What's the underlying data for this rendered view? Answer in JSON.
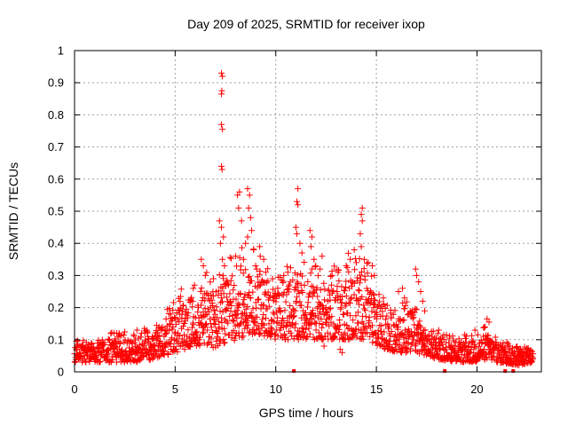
{
  "chart_data": {
    "type": "scatter",
    "title": "Day 209 of 2025, SRMTID for receiver ixop",
    "xlabel": "GPS time / hours",
    "ylabel": "SRMTID / TECUs",
    "xlim": [
      0,
      23.2
    ],
    "ylim": [
      0,
      1
    ],
    "x_ticks": [
      "0",
      "5",
      "10",
      "15",
      "20"
    ],
    "y_ticks": [
      "0",
      "0.1",
      "0.2",
      "0.3",
      "0.4",
      "0.5",
      "0.6",
      "0.7",
      "0.8",
      "0.9",
      "1"
    ],
    "grid": true,
    "marker": "+",
    "color": "#ff0000",
    "envelope": [
      {
        "x": 0.0,
        "low": 0.03,
        "high": 0.08
      },
      {
        "x": 1.0,
        "low": 0.03,
        "high": 0.09
      },
      {
        "x": 2.0,
        "low": 0.03,
        "high": 0.1
      },
      {
        "x": 3.0,
        "low": 0.03,
        "high": 0.1
      },
      {
        "x": 4.0,
        "low": 0.04,
        "high": 0.12
      },
      {
        "x": 4.5,
        "low": 0.05,
        "high": 0.15
      },
      {
        "x": 5.0,
        "low": 0.06,
        "high": 0.19
      },
      {
        "x": 5.5,
        "low": 0.07,
        "high": 0.22
      },
      {
        "x": 6.0,
        "low": 0.08,
        "high": 0.24
      },
      {
        "x": 6.5,
        "low": 0.08,
        "high": 0.26
      },
      {
        "x": 7.0,
        "low": 0.07,
        "high": 0.26
      },
      {
        "x": 7.5,
        "low": 0.08,
        "high": 0.28
      },
      {
        "x": 8.0,
        "low": 0.1,
        "high": 0.32
      },
      {
        "x": 8.5,
        "low": 0.11,
        "high": 0.34
      },
      {
        "x": 9.0,
        "low": 0.12,
        "high": 0.32
      },
      {
        "x": 9.5,
        "low": 0.11,
        "high": 0.28
      },
      {
        "x": 10.0,
        "low": 0.1,
        "high": 0.25
      },
      {
        "x": 10.5,
        "low": 0.1,
        "high": 0.27
      },
      {
        "x": 11.0,
        "low": 0.1,
        "high": 0.28
      },
      {
        "x": 11.5,
        "low": 0.1,
        "high": 0.28
      },
      {
        "x": 12.0,
        "low": 0.1,
        "high": 0.27
      },
      {
        "x": 12.5,
        "low": 0.1,
        "high": 0.26
      },
      {
        "x": 13.0,
        "low": 0.1,
        "high": 0.28
      },
      {
        "x": 13.5,
        "low": 0.1,
        "high": 0.3
      },
      {
        "x": 14.0,
        "low": 0.1,
        "high": 0.31
      },
      {
        "x": 14.5,
        "low": 0.1,
        "high": 0.3
      },
      {
        "x": 15.0,
        "low": 0.08,
        "high": 0.22
      },
      {
        "x": 15.5,
        "low": 0.07,
        "high": 0.18
      },
      {
        "x": 16.0,
        "low": 0.06,
        "high": 0.16
      },
      {
        "x": 16.5,
        "low": 0.06,
        "high": 0.19
      },
      {
        "x": 17.0,
        "low": 0.06,
        "high": 0.2
      },
      {
        "x": 17.5,
        "low": 0.05,
        "high": 0.12
      },
      {
        "x": 18.0,
        "low": 0.04,
        "high": 0.1
      },
      {
        "x": 19.0,
        "low": 0.03,
        "high": 0.09
      },
      {
        "x": 20.0,
        "low": 0.03,
        "high": 0.1
      },
      {
        "x": 20.5,
        "low": 0.04,
        "high": 0.12
      },
      {
        "x": 21.0,
        "low": 0.03,
        "high": 0.09
      },
      {
        "x": 22.0,
        "low": 0.02,
        "high": 0.07
      },
      {
        "x": 22.8,
        "low": 0.03,
        "high": 0.06
      }
    ],
    "peaks": [
      {
        "x": 7.3,
        "y": 0.93
      },
      {
        "x": 7.35,
        "y": 0.92
      },
      {
        "x": 7.32,
        "y": 0.875
      },
      {
        "x": 7.3,
        "y": 0.865
      },
      {
        "x": 7.3,
        "y": 0.77
      },
      {
        "x": 7.35,
        "y": 0.755
      },
      {
        "x": 7.3,
        "y": 0.64
      },
      {
        "x": 7.33,
        "y": 0.63
      },
      {
        "x": 7.2,
        "y": 0.47
      },
      {
        "x": 7.3,
        "y": 0.45
      },
      {
        "x": 7.4,
        "y": 0.42
      },
      {
        "x": 7.25,
        "y": 0.4
      },
      {
        "x": 7.35,
        "y": 0.35
      },
      {
        "x": 7.45,
        "y": 0.33
      },
      {
        "x": 8.1,
        "y": 0.55
      },
      {
        "x": 8.2,
        "y": 0.56
      },
      {
        "x": 8.15,
        "y": 0.51
      },
      {
        "x": 8.3,
        "y": 0.47
      },
      {
        "x": 8.6,
        "y": 0.57
      },
      {
        "x": 8.7,
        "y": 0.55
      },
      {
        "x": 8.65,
        "y": 0.51
      },
      {
        "x": 8.75,
        "y": 0.48
      },
      {
        "x": 8.8,
        "y": 0.44
      },
      {
        "x": 8.6,
        "y": 0.42
      },
      {
        "x": 8.5,
        "y": 0.4
      },
      {
        "x": 8.9,
        "y": 0.38
      },
      {
        "x": 8.0,
        "y": 0.36
      },
      {
        "x": 8.4,
        "y": 0.35
      },
      {
        "x": 9.0,
        "y": 0.33
      },
      {
        "x": 6.3,
        "y": 0.35
      },
      {
        "x": 6.4,
        "y": 0.33
      },
      {
        "x": 6.5,
        "y": 0.3
      },
      {
        "x": 6.9,
        "y": 0.29
      },
      {
        "x": 5.9,
        "y": 0.26
      },
      {
        "x": 9.2,
        "y": 0.39
      },
      {
        "x": 9.4,
        "y": 0.35
      },
      {
        "x": 9.5,
        "y": 0.31
      },
      {
        "x": 10.1,
        "y": 0.26
      },
      {
        "x": 10.4,
        "y": 0.3
      },
      {
        "x": 10.6,
        "y": 0.31
      },
      {
        "x": 11.1,
        "y": 0.57
      },
      {
        "x": 11.05,
        "y": 0.53
      },
      {
        "x": 11.1,
        "y": 0.52
      },
      {
        "x": 11.0,
        "y": 0.45
      },
      {
        "x": 11.05,
        "y": 0.43
      },
      {
        "x": 11.2,
        "y": 0.4
      },
      {
        "x": 11.3,
        "y": 0.37
      },
      {
        "x": 11.1,
        "y": 0.275
      },
      {
        "x": 11.7,
        "y": 0.44
      },
      {
        "x": 11.8,
        "y": 0.42
      },
      {
        "x": 11.75,
        "y": 0.39
      },
      {
        "x": 11.9,
        "y": 0.35
      },
      {
        "x": 12.3,
        "y": 0.36
      },
      {
        "x": 12.2,
        "y": 0.32
      },
      {
        "x": 12.8,
        "y": 0.3
      },
      {
        "x": 13.1,
        "y": 0.31
      },
      {
        "x": 13.5,
        "y": 0.33
      },
      {
        "x": 13.7,
        "y": 0.35
      },
      {
        "x": 13.9,
        "y": 0.38
      },
      {
        "x": 14.0,
        "y": 0.34
      },
      {
        "x": 14.3,
        "y": 0.51
      },
      {
        "x": 14.25,
        "y": 0.49
      },
      {
        "x": 14.3,
        "y": 0.47
      },
      {
        "x": 14.2,
        "y": 0.43
      },
      {
        "x": 14.25,
        "y": 0.39
      },
      {
        "x": 14.4,
        "y": 0.35
      },
      {
        "x": 14.6,
        "y": 0.34
      },
      {
        "x": 14.8,
        "y": 0.33
      },
      {
        "x": 14.9,
        "y": 0.3
      },
      {
        "x": 16.1,
        "y": 0.25
      },
      {
        "x": 16.3,
        "y": 0.26
      },
      {
        "x": 16.4,
        "y": 0.23
      },
      {
        "x": 16.95,
        "y": 0.32
      },
      {
        "x": 17.0,
        "y": 0.3
      },
      {
        "x": 17.1,
        "y": 0.28
      },
      {
        "x": 17.2,
        "y": 0.25
      },
      {
        "x": 17.3,
        "y": 0.22
      },
      {
        "x": 17.4,
        "y": 0.19
      },
      {
        "x": 20.5,
        "y": 0.165
      },
      {
        "x": 20.6,
        "y": 0.155
      },
      {
        "x": 20.4,
        "y": 0.14
      },
      {
        "x": 19.9,
        "y": 0.13
      },
      {
        "x": 18.1,
        "y": 0.13
      },
      {
        "x": 12.4,
        "y": 0.08
      },
      {
        "x": 13.2,
        "y": 0.07
      },
      {
        "x": 13.3,
        "y": 0.06
      },
      {
        "x": 14.9,
        "y": 0.12
      },
      {
        "x": 3.1,
        "y": 0.13
      },
      {
        "x": 2.1,
        "y": 0.12
      },
      {
        "x": 4.2,
        "y": 0.14
      }
    ],
    "zero_markers_x": [
      10.9,
      18.4,
      21.4,
      21.8
    ]
  }
}
